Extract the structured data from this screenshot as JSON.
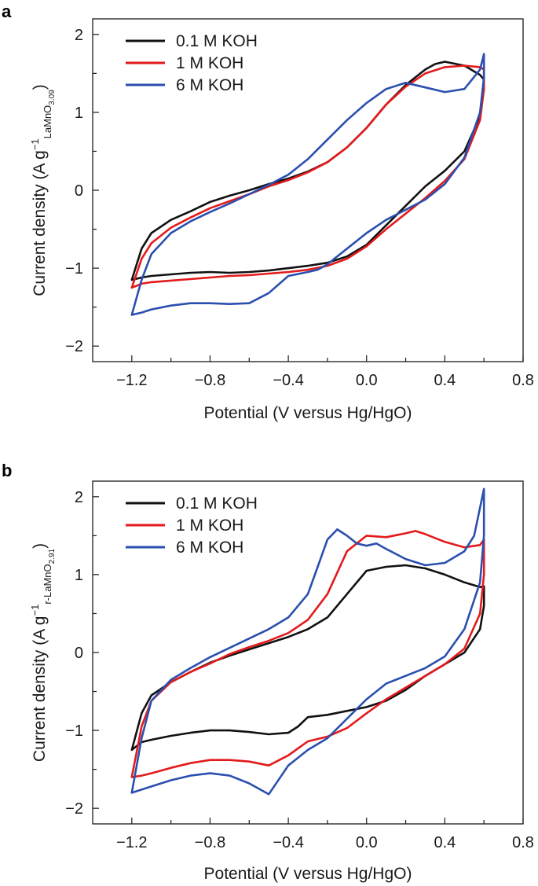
{
  "chart_data": [
    {
      "panel": "a",
      "type": "line",
      "title": "",
      "xlabel": "Potential (V versus Hg/HgO)",
      "ylabel": {
        "main": "Current density (A g",
        "sup": "−1",
        "sub": "LaMnO",
        "subsub": "3.09",
        "close": ")"
      },
      "xlim": [
        -1.4,
        0.8
      ],
      "ylim": [
        -2.2,
        2.2
      ],
      "xticks": [
        -1.2,
        -0.8,
        -0.4,
        0.0,
        0.4,
        0.8
      ],
      "xticklabels": [
        "−1.2",
        "−0.8",
        "−0.4",
        "0.0",
        "0.4",
        "0.8"
      ],
      "yticks": [
        -2,
        -1,
        0,
        1,
        2
      ],
      "yticklabels": [
        "−2",
        "−1",
        "0",
        "1",
        "2"
      ],
      "legend_position": "top-left",
      "series": [
        {
          "name": "0.1 M KOH",
          "color": "#111111",
          "x": [
            -1.2,
            -1.15,
            -1.1,
            -1.0,
            -0.9,
            -0.8,
            -0.7,
            -0.6,
            -0.5,
            -0.4,
            -0.3,
            -0.2,
            -0.1,
            0.0,
            0.1,
            0.2,
            0.3,
            0.35,
            0.4,
            0.5,
            0.58,
            0.6,
            0.6,
            0.58,
            0.5,
            0.4,
            0.3,
            0.2,
            0.1,
            0.0,
            -0.1,
            -0.2,
            -0.3,
            -0.4,
            -0.5,
            -0.6,
            -0.7,
            -0.8,
            -0.9,
            -1.0,
            -1.1,
            -1.15,
            -1.2
          ],
          "y": [
            -1.15,
            -0.75,
            -0.55,
            -0.38,
            -0.27,
            -0.15,
            -0.07,
            0.0,
            0.08,
            0.15,
            0.24,
            0.36,
            0.55,
            0.8,
            1.1,
            1.35,
            1.55,
            1.62,
            1.65,
            1.6,
            1.48,
            1.42,
            1.3,
            0.95,
            0.5,
            0.25,
            0.05,
            -0.2,
            -0.45,
            -0.7,
            -0.85,
            -0.93,
            -0.97,
            -1.0,
            -1.03,
            -1.05,
            -1.06,
            -1.05,
            -1.06,
            -1.08,
            -1.1,
            -1.12,
            -1.15
          ]
        },
        {
          "name": "1 M KOH",
          "color": "#e31a1c",
          "x": [
            -1.2,
            -1.15,
            -1.1,
            -1.0,
            -0.9,
            -0.8,
            -0.7,
            -0.6,
            -0.5,
            -0.4,
            -0.3,
            -0.2,
            -0.1,
            0.0,
            0.1,
            0.2,
            0.3,
            0.4,
            0.5,
            0.58,
            0.6,
            0.6,
            0.58,
            0.5,
            0.4,
            0.3,
            0.2,
            0.1,
            0.0,
            -0.1,
            -0.2,
            -0.3,
            -0.4,
            -0.5,
            -0.6,
            -0.7,
            -0.8,
            -0.9,
            -1.0,
            -1.1,
            -1.15,
            -1.2
          ],
          "y": [
            -1.25,
            -0.88,
            -0.68,
            -0.48,
            -0.35,
            -0.23,
            -0.14,
            -0.05,
            0.05,
            0.13,
            0.23,
            0.36,
            0.55,
            0.8,
            1.1,
            1.33,
            1.5,
            1.58,
            1.6,
            1.58,
            1.55,
            1.3,
            0.9,
            0.4,
            0.12,
            -0.1,
            -0.3,
            -0.5,
            -0.72,
            -0.88,
            -0.97,
            -1.02,
            -1.05,
            -1.07,
            -1.09,
            -1.1,
            -1.12,
            -1.14,
            -1.16,
            -1.18,
            -1.2,
            -1.25
          ]
        },
        {
          "name": "6 M KOH",
          "color": "#2b4fae",
          "x": [
            -1.2,
            -1.15,
            -1.1,
            -1.0,
            -0.9,
            -0.8,
            -0.7,
            -0.6,
            -0.5,
            -0.4,
            -0.3,
            -0.2,
            -0.1,
            0.0,
            0.1,
            0.2,
            0.3,
            0.4,
            0.5,
            0.58,
            0.6,
            0.6,
            0.58,
            0.5,
            0.4,
            0.3,
            0.2,
            0.1,
            0.0,
            -0.1,
            -0.2,
            -0.25,
            -0.3,
            -0.4,
            -0.5,
            -0.6,
            -0.7,
            -0.8,
            -0.9,
            -1.0,
            -1.1,
            -1.15,
            -1.2
          ],
          "y": [
            -1.6,
            -1.15,
            -0.82,
            -0.55,
            -0.4,
            -0.28,
            -0.17,
            -0.05,
            0.07,
            0.2,
            0.4,
            0.65,
            0.9,
            1.12,
            1.3,
            1.38,
            1.32,
            1.26,
            1.3,
            1.55,
            1.75,
            1.45,
            1.0,
            0.42,
            0.08,
            -0.12,
            -0.25,
            -0.38,
            -0.55,
            -0.75,
            -0.95,
            -1.02,
            -1.05,
            -1.1,
            -1.32,
            -1.45,
            -1.46,
            -1.45,
            -1.45,
            -1.48,
            -1.53,
            -1.57,
            -1.6
          ]
        }
      ]
    },
    {
      "panel": "b",
      "type": "line",
      "title": "",
      "xlabel": "Potential (V versus Hg/HgO)",
      "ylabel": {
        "main": "Current density (A g",
        "sup": "−1",
        "sub": "r-LaMnO",
        "subsub": "2.91",
        "close": ")"
      },
      "xlim": [
        -1.4,
        0.8
      ],
      "ylim": [
        -2.2,
        2.2
      ],
      "xticks": [
        -1.2,
        -0.8,
        -0.4,
        0.0,
        0.4,
        0.8
      ],
      "xticklabels": [
        "−1.2",
        "−0.8",
        "−0.4",
        "0.0",
        "0.4",
        "0.8"
      ],
      "yticks": [
        -2,
        -1,
        0,
        1,
        2
      ],
      "yticklabels": [
        "−2",
        "−1",
        "0",
        "1",
        "2"
      ],
      "legend_position": "top-left",
      "series": [
        {
          "name": "0.1 M KOH",
          "color": "#111111",
          "x": [
            -1.2,
            -1.15,
            -1.1,
            -1.0,
            -0.9,
            -0.8,
            -0.7,
            -0.6,
            -0.5,
            -0.4,
            -0.3,
            -0.2,
            -0.1,
            0.0,
            0.1,
            0.2,
            0.3,
            0.4,
            0.5,
            0.58,
            0.6,
            0.6,
            0.58,
            0.5,
            0.4,
            0.3,
            0.2,
            0.1,
            0.0,
            -0.1,
            -0.2,
            -0.3,
            -0.35,
            -0.4,
            -0.5,
            -0.6,
            -0.7,
            -0.8,
            -0.9,
            -1.0,
            -1.1,
            -1.15,
            -1.2
          ],
          "y": [
            -1.25,
            -0.78,
            -0.55,
            -0.38,
            -0.25,
            -0.13,
            -0.04,
            0.04,
            0.12,
            0.2,
            0.3,
            0.45,
            0.75,
            1.05,
            1.1,
            1.12,
            1.08,
            1.0,
            0.9,
            0.84,
            0.85,
            0.6,
            0.3,
            0.0,
            -0.15,
            -0.3,
            -0.48,
            -0.62,
            -0.7,
            -0.75,
            -0.8,
            -0.83,
            -0.95,
            -1.03,
            -1.05,
            -1.02,
            -1.0,
            -1.0,
            -1.03,
            -1.07,
            -1.12,
            -1.15,
            -1.25
          ]
        },
        {
          "name": "1 M KOH",
          "color": "#e31a1c",
          "x": [
            -1.2,
            -1.15,
            -1.1,
            -1.0,
            -0.9,
            -0.8,
            -0.7,
            -0.6,
            -0.5,
            -0.4,
            -0.3,
            -0.2,
            -0.1,
            0.0,
            0.1,
            0.2,
            0.25,
            0.3,
            0.4,
            0.5,
            0.58,
            0.6,
            0.6,
            0.58,
            0.5,
            0.4,
            0.3,
            0.2,
            0.1,
            0.0,
            -0.1,
            -0.2,
            -0.3,
            -0.4,
            -0.5,
            -0.6,
            -0.7,
            -0.8,
            -0.9,
            -1.0,
            -1.1,
            -1.15,
            -1.2
          ],
          "y": [
            -1.6,
            -0.95,
            -0.62,
            -0.38,
            -0.25,
            -0.14,
            -0.02,
            0.07,
            0.15,
            0.25,
            0.42,
            0.75,
            1.3,
            1.5,
            1.48,
            1.53,
            1.56,
            1.52,
            1.42,
            1.35,
            1.38,
            1.45,
            1.0,
            0.5,
            0.05,
            -0.15,
            -0.3,
            -0.45,
            -0.6,
            -0.78,
            -0.97,
            -1.08,
            -1.14,
            -1.32,
            -1.45,
            -1.4,
            -1.38,
            -1.38,
            -1.42,
            -1.48,
            -1.55,
            -1.58,
            -1.6
          ]
        },
        {
          "name": "6 M KOH",
          "color": "#2b4fae",
          "x": [
            -1.2,
            -1.15,
            -1.1,
            -1.0,
            -0.9,
            -0.8,
            -0.7,
            -0.6,
            -0.5,
            -0.4,
            -0.3,
            -0.25,
            -0.2,
            -0.15,
            -0.1,
            -0.05,
            0.0,
            0.05,
            0.1,
            0.2,
            0.3,
            0.4,
            0.5,
            0.55,
            0.6,
            0.6,
            0.58,
            0.5,
            0.4,
            0.3,
            0.2,
            0.1,
            0.0,
            -0.1,
            -0.2,
            -0.3,
            -0.4,
            -0.5,
            -0.6,
            -0.7,
            -0.8,
            -0.9,
            -1.0,
            -1.1,
            -1.15,
            -1.2
          ],
          "y": [
            -1.8,
            -1.1,
            -0.62,
            -0.35,
            -0.2,
            -0.06,
            0.06,
            0.18,
            0.3,
            0.45,
            0.75,
            1.1,
            1.45,
            1.58,
            1.5,
            1.4,
            1.37,
            1.4,
            1.33,
            1.2,
            1.12,
            1.15,
            1.3,
            1.5,
            2.1,
            1.5,
            0.9,
            0.3,
            -0.05,
            -0.2,
            -0.3,
            -0.4,
            -0.6,
            -0.85,
            -1.1,
            -1.25,
            -1.45,
            -1.82,
            -1.68,
            -1.58,
            -1.55,
            -1.58,
            -1.64,
            -1.72,
            -1.76,
            -1.8
          ]
        }
      ]
    }
  ]
}
